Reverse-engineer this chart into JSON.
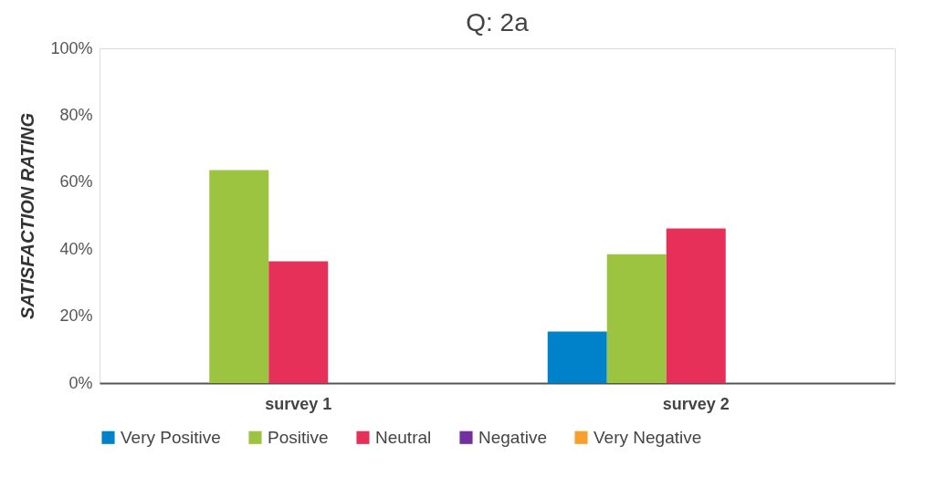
{
  "chart_data": {
    "type": "bar",
    "title": "Q: 2a",
    "ylabel": "SATISFACTION RATING",
    "categories": [
      "survey 1",
      "survey 2"
    ],
    "series": [
      {
        "name": "Very Positive",
        "color": "#0082ca",
        "values": [
          0,
          15.4
        ]
      },
      {
        "name": "Positive",
        "color": "#9dc441",
        "values": [
          63.6,
          38.5
        ]
      },
      {
        "name": "Neutral",
        "color": "#e6305a",
        "values": [
          36.4,
          46.2
        ]
      },
      {
        "name": "Negative",
        "color": "#7030a0",
        "values": [
          0,
          0
        ]
      },
      {
        "name": "Very Negative",
        "color": "#f7a030",
        "values": [
          0,
          0
        ]
      }
    ],
    "ylim": [
      0,
      100
    ],
    "yticks": [
      {
        "value": 0,
        "label": "0%"
      },
      {
        "value": 20,
        "label": "20%"
      },
      {
        "value": 40,
        "label": "40%"
      },
      {
        "value": 60,
        "label": "60%"
      },
      {
        "value": 80,
        "label": "80%"
      },
      {
        "value": 100,
        "label": "100%"
      }
    ],
    "grid": false,
    "legend": "bottom"
  }
}
